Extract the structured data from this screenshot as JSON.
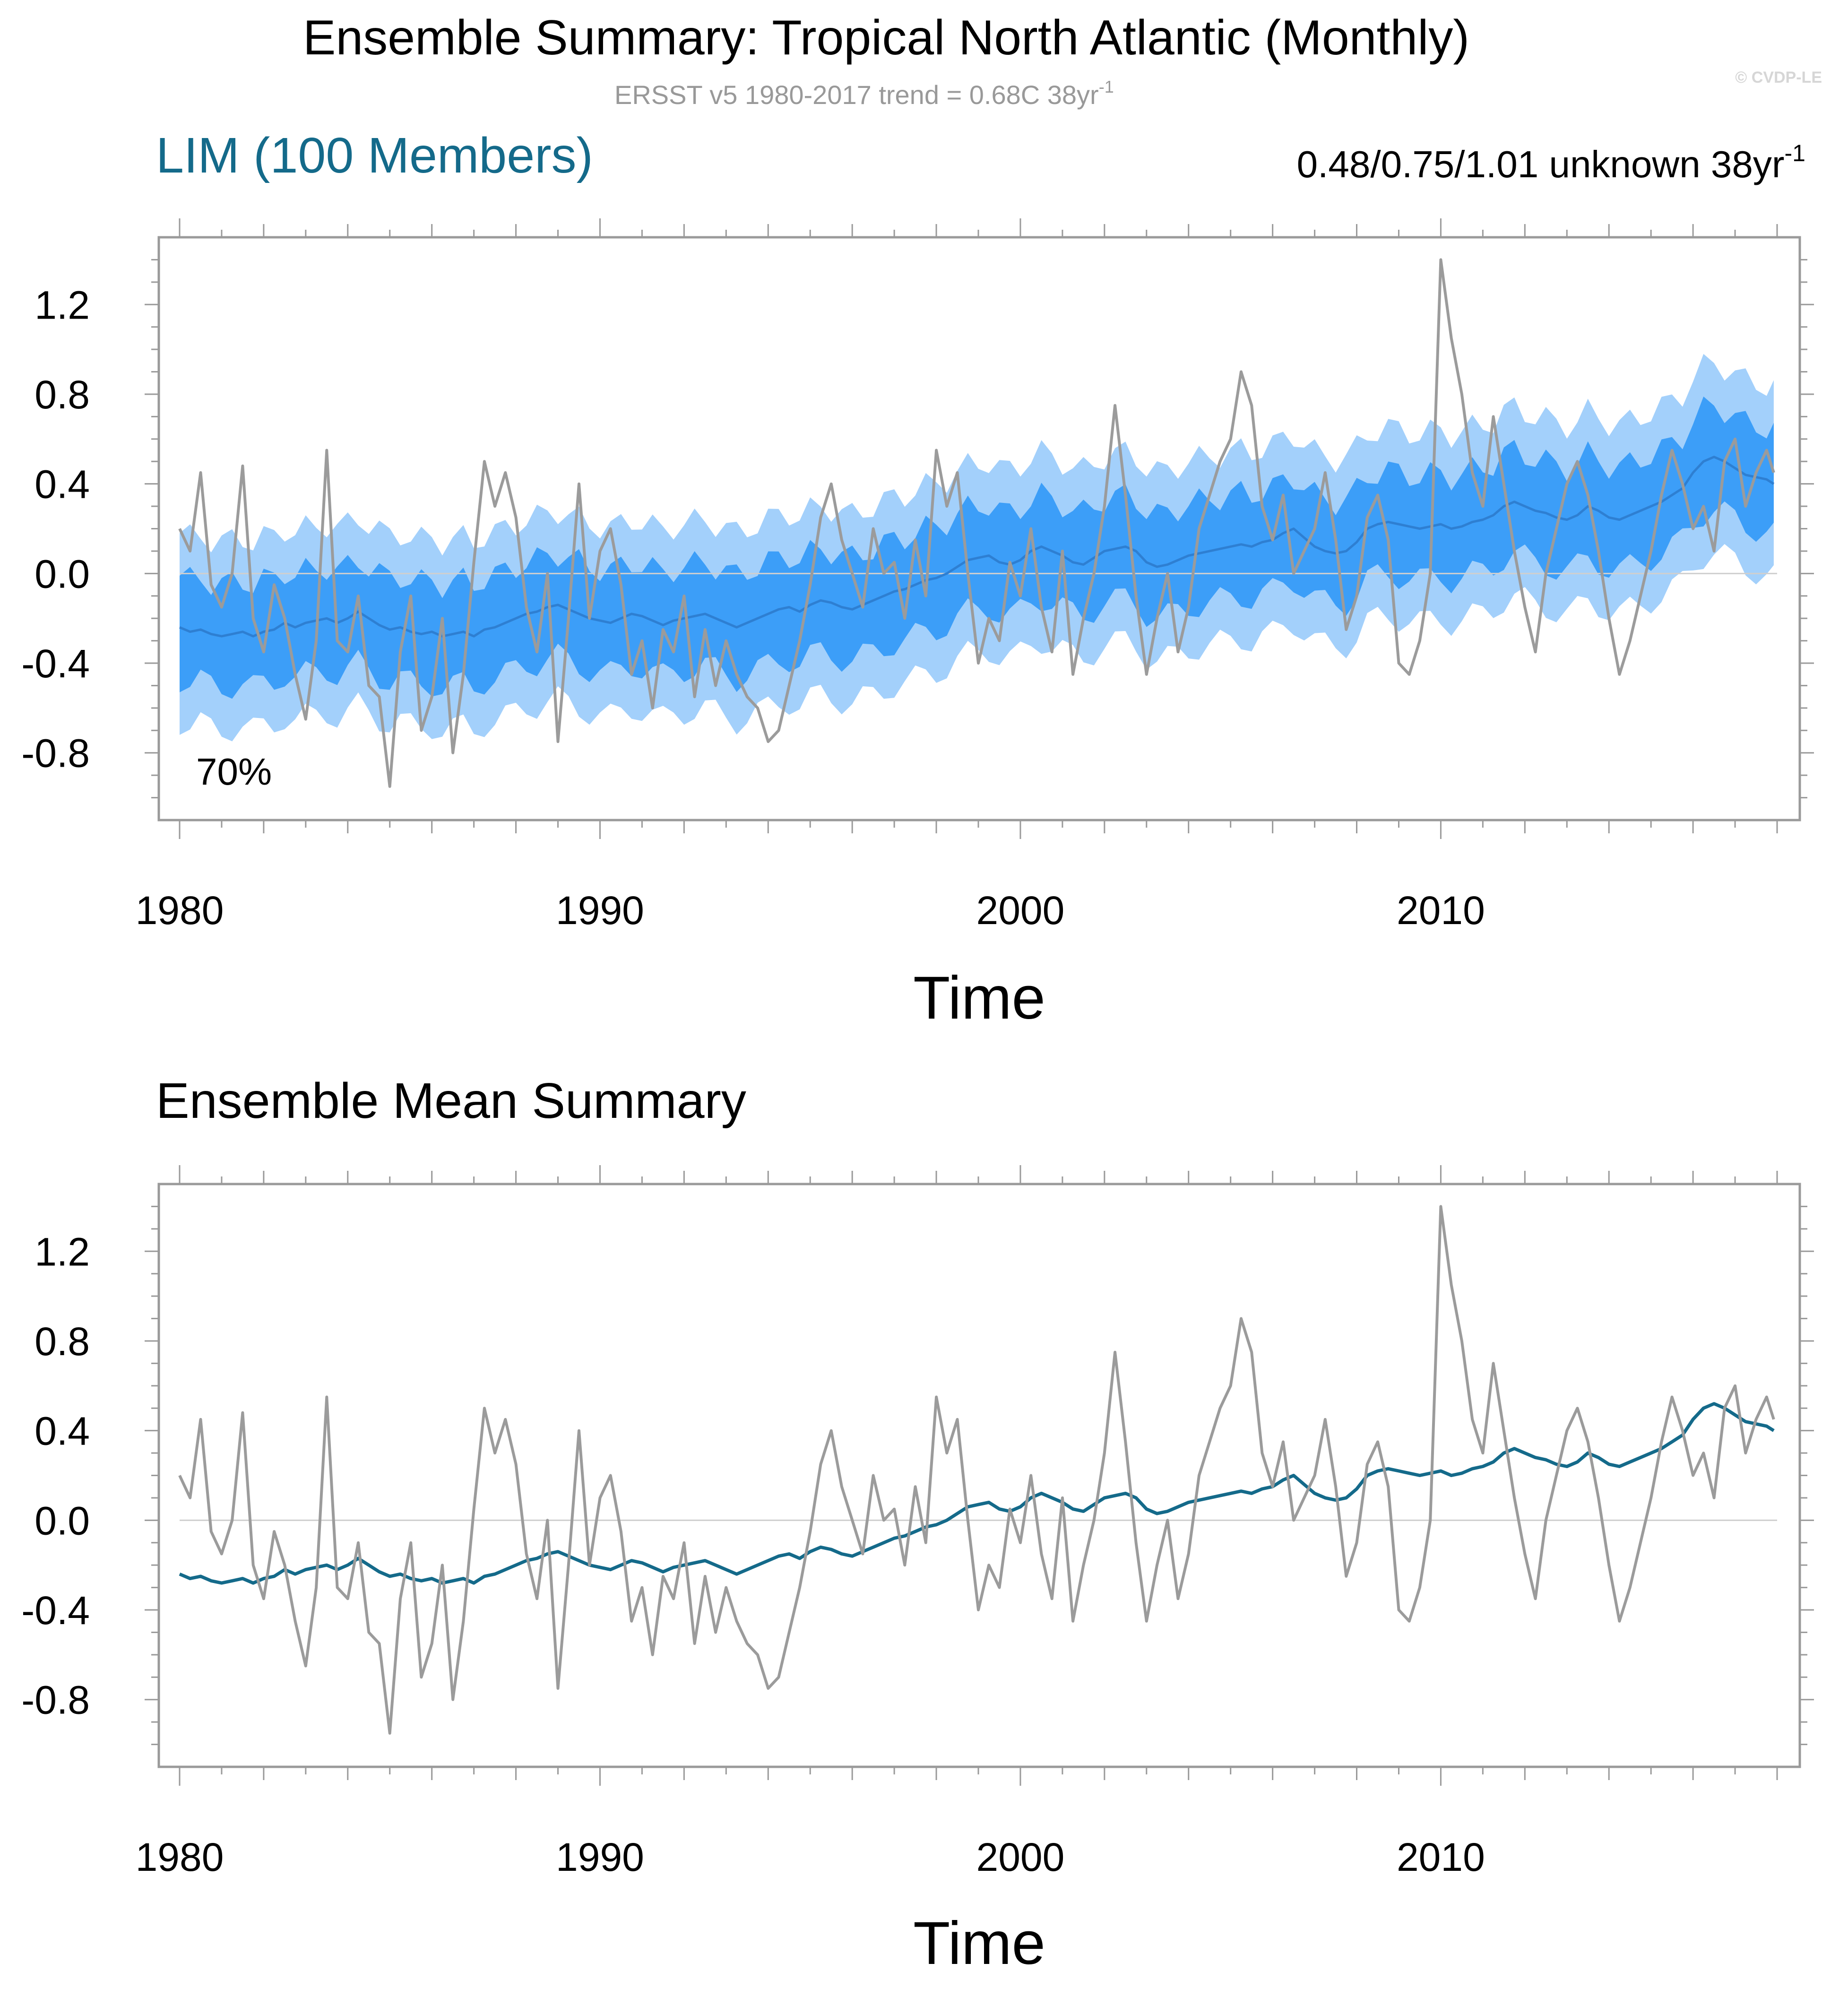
{
  "figure": {
    "title": "Ensemble Summary: Tropical North Atlantic (Monthly)",
    "subtitle": "ERSST v5 1980-2017 trend = 0.68C 38yr",
    "subtitle_sup": "-1",
    "watermark": "© CVDP-LE"
  },
  "colors": {
    "obs_line": "#9b9b9b",
    "band_outer": "#a3d0fb",
    "band_inner": "#3c9ef8",
    "ens_mean_top": "#2e7fd2",
    "ens_mean_bottom": "#146a8a",
    "model_label": "#146a8a",
    "zero_line": "#cfcfcf",
    "frame": "#9a9a9a"
  },
  "chart_data": [
    {
      "type": "area",
      "panel": "top",
      "title_left": "LIM (100 Members)",
      "title_right": "0.48/0.75/1.01 unknown 38yr",
      "title_right_sup": "-1",
      "annotation": "70%",
      "xlabel": "Time",
      "ylabel": "",
      "x_tick_labels": [
        "1980",
        "1990",
        "2000",
        "2010"
      ],
      "y_tick_labels": [
        "1.2",
        "0.8",
        "0.4",
        "0.0",
        "-0.4",
        "-0.8"
      ],
      "xlim": [
        1980,
        2018
      ],
      "ylim": [
        -1.1,
        1.5
      ],
      "grid": false,
      "series": [
        {
          "name": "LIM ensemble 70% range",
          "kind": "band_inner",
          "half_width": 0.23
        },
        {
          "name": "LIM ensemble full range",
          "kind": "band_outer",
          "half_width": 0.42
        },
        {
          "name": "LIM ensemble mean",
          "kind": "line",
          "source": "ensemble_mean"
        },
        {
          "name": "ERSST v5 observed",
          "kind": "line",
          "source": "observed"
        }
      ]
    },
    {
      "type": "line",
      "panel": "bottom",
      "title_left": "Ensemble Mean Summary",
      "xlabel": "Time",
      "ylabel": "",
      "x_tick_labels": [
        "1980",
        "1990",
        "2000",
        "2010"
      ],
      "y_tick_labels": [
        "1.2",
        "0.8",
        "0.4",
        "0.0",
        "-0.4",
        "-0.8"
      ],
      "xlim": [
        1980,
        2018
      ],
      "ylim": [
        -1.1,
        1.5
      ],
      "grid": false,
      "series": [
        {
          "name": "LIM ensemble mean",
          "kind": "line",
          "source": "ensemble_mean"
        },
        {
          "name": "ERSST v5 observed",
          "kind": "line",
          "source": "observed"
        }
      ]
    }
  ],
  "series_values": {
    "years": [
      1980.0,
      1980.25,
      1980.5,
      1980.75,
      1981.0,
      1981.25,
      1981.5,
      1981.75,
      1982.0,
      1982.25,
      1982.5,
      1982.75,
      1983.0,
      1983.25,
      1983.5,
      1983.75,
      1984.0,
      1984.25,
      1984.5,
      1984.75,
      1985.0,
      1985.25,
      1985.5,
      1985.75,
      1986.0,
      1986.25,
      1986.5,
      1986.75,
      1987.0,
      1987.25,
      1987.5,
      1987.75,
      1988.0,
      1988.25,
      1988.5,
      1988.75,
      1989.0,
      1989.25,
      1989.5,
      1989.75,
      1990.0,
      1990.25,
      1990.5,
      1990.75,
      1991.0,
      1991.25,
      1991.5,
      1991.75,
      1992.0,
      1992.25,
      1992.5,
      1992.75,
      1993.0,
      1993.25,
      1993.5,
      1993.75,
      1994.0,
      1994.25,
      1994.5,
      1994.75,
      1995.0,
      1995.25,
      1995.5,
      1995.75,
      1996.0,
      1996.25,
      1996.5,
      1996.75,
      1997.0,
      1997.25,
      1997.5,
      1997.75,
      1998.0,
      1998.25,
      1998.5,
      1998.75,
      1999.0,
      1999.25,
      1999.5,
      1999.75,
      2000.0,
      2000.25,
      2000.5,
      2000.75,
      2001.0,
      2001.25,
      2001.5,
      2001.75,
      2002.0,
      2002.25,
      2002.5,
      2002.75,
      2003.0,
      2003.25,
      2003.5,
      2003.75,
      2004.0,
      2004.25,
      2004.5,
      2004.75,
      2005.0,
      2005.25,
      2005.5,
      2005.75,
      2006.0,
      2006.25,
      2006.5,
      2006.75,
      2007.0,
      2007.25,
      2007.5,
      2007.75,
      2008.0,
      2008.25,
      2008.5,
      2008.75,
      2009.0,
      2009.25,
      2009.5,
      2009.75,
      2010.0,
      2010.25,
      2010.5,
      2010.75,
      2011.0,
      2011.25,
      2011.5,
      2011.75,
      2012.0,
      2012.25,
      2012.5,
      2012.75,
      2013.0,
      2013.25,
      2013.5,
      2013.75,
      2014.0,
      2014.25,
      2014.5,
      2014.75,
      2015.0,
      2015.25,
      2015.5,
      2015.75,
      2016.0,
      2016.25,
      2016.5,
      2016.75,
      2017.0,
      2017.25,
      2017.5,
      2017.75,
      2017.92
    ],
    "observed": [
      0.2,
      0.1,
      0.45,
      -0.05,
      -0.15,
      0.0,
      0.48,
      -0.2,
      -0.35,
      -0.05,
      -0.2,
      -0.45,
      -0.65,
      -0.3,
      0.55,
      -0.3,
      -0.35,
      -0.1,
      -0.5,
      -0.55,
      -0.95,
      -0.35,
      -0.1,
      -0.7,
      -0.55,
      -0.2,
      -0.8,
      -0.45,
      0.05,
      0.5,
      0.3,
      0.45,
      0.25,
      -0.15,
      -0.35,
      0.0,
      -0.75,
      -0.2,
      0.4,
      -0.2,
      0.1,
      0.2,
      -0.05,
      -0.45,
      -0.3,
      -0.6,
      -0.25,
      -0.35,
      -0.1,
      -0.55,
      -0.25,
      -0.5,
      -0.3,
      -0.45,
      -0.55,
      -0.6,
      -0.75,
      -0.7,
      -0.5,
      -0.3,
      -0.05,
      0.25,
      0.4,
      0.15,
      0.0,
      -0.15,
      0.2,
      0.0,
      0.05,
      -0.2,
      0.15,
      -0.1,
      0.55,
      0.3,
      0.45,
      0.0,
      -0.4,
      -0.2,
      -0.3,
      0.05,
      -0.1,
      0.2,
      -0.15,
      -0.35,
      0.1,
      -0.45,
      -0.2,
      0.0,
      0.3,
      0.75,
      0.35,
      -0.1,
      -0.45,
      -0.2,
      0.0,
      -0.35,
      -0.15,
      0.2,
      0.35,
      0.5,
      0.6,
      0.9,
      0.75,
      0.3,
      0.15,
      0.35,
      0.0,
      0.1,
      0.2,
      0.45,
      0.15,
      -0.25,
      -0.1,
      0.25,
      0.35,
      0.15,
      -0.4,
      -0.45,
      -0.3,
      0.0,
      1.4,
      1.05,
      0.8,
      0.45,
      0.3,
      0.7,
      0.4,
      0.1,
      -0.15,
      -0.35,
      0.0,
      0.2,
      0.4,
      0.5,
      0.35,
      0.1,
      -0.2,
      -0.45,
      -0.3,
      -0.1,
      0.1,
      0.35,
      0.55,
      0.4,
      0.2,
      0.3,
      0.1,
      0.5,
      0.6,
      0.3,
      0.45,
      0.55,
      0.45
    ],
    "ensemble_mean": [
      -0.24,
      -0.26,
      -0.25,
      -0.27,
      -0.28,
      -0.27,
      -0.26,
      -0.28,
      -0.26,
      -0.25,
      -0.22,
      -0.24,
      -0.22,
      -0.21,
      -0.2,
      -0.22,
      -0.2,
      -0.17,
      -0.2,
      -0.23,
      -0.25,
      -0.24,
      -0.26,
      -0.27,
      -0.26,
      -0.28,
      -0.27,
      -0.26,
      -0.28,
      -0.25,
      -0.24,
      -0.22,
      -0.2,
      -0.18,
      -0.17,
      -0.15,
      -0.14,
      -0.16,
      -0.18,
      -0.2,
      -0.21,
      -0.22,
      -0.2,
      -0.18,
      -0.19,
      -0.21,
      -0.23,
      -0.21,
      -0.2,
      -0.19,
      -0.18,
      -0.2,
      -0.22,
      -0.24,
      -0.22,
      -0.2,
      -0.18,
      -0.16,
      -0.15,
      -0.17,
      -0.14,
      -0.12,
      -0.13,
      -0.15,
      -0.16,
      -0.14,
      -0.12,
      -0.1,
      -0.08,
      -0.07,
      -0.05,
      -0.03,
      -0.02,
      0.0,
      0.03,
      0.06,
      0.07,
      0.08,
      0.05,
      0.04,
      0.06,
      0.1,
      0.12,
      0.1,
      0.08,
      0.05,
      0.04,
      0.07,
      0.1,
      0.11,
      0.12,
      0.1,
      0.05,
      0.03,
      0.04,
      0.06,
      0.08,
      0.09,
      0.1,
      0.11,
      0.12,
      0.13,
      0.12,
      0.14,
      0.15,
      0.18,
      0.2,
      0.16,
      0.12,
      0.1,
      0.09,
      0.1,
      0.14,
      0.2,
      0.22,
      0.23,
      0.22,
      0.21,
      0.2,
      0.21,
      0.22,
      0.2,
      0.21,
      0.23,
      0.24,
      0.26,
      0.3,
      0.32,
      0.3,
      0.28,
      0.27,
      0.25,
      0.24,
      0.26,
      0.3,
      0.28,
      0.25,
      0.24,
      0.26,
      0.28,
      0.3,
      0.32,
      0.35,
      0.38,
      0.45,
      0.5,
      0.52,
      0.5,
      0.47,
      0.44,
      0.43,
      0.42,
      0.4
    ]
  }
}
